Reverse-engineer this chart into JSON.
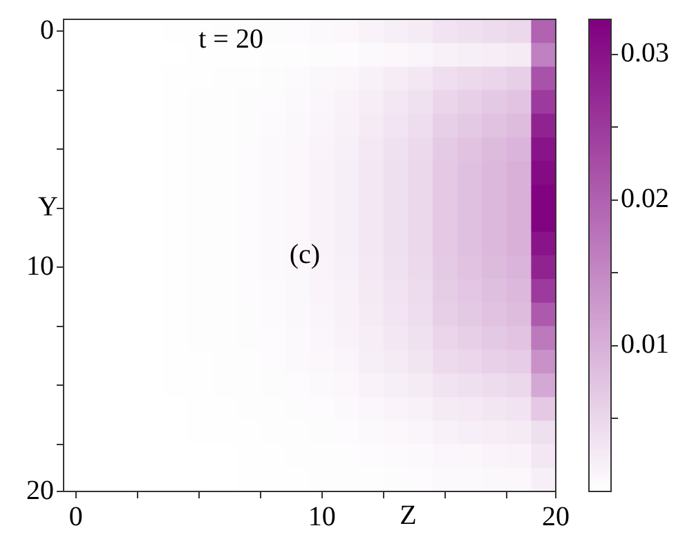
{
  "chart_data": {
    "type": "heatmap",
    "xlabel": "Z",
    "ylabel": "Y",
    "annotations": [
      "t = 20",
      "(c)"
    ],
    "x": [
      0,
      1,
      2,
      3,
      4,
      5,
      6,
      7,
      8,
      9,
      10,
      11,
      12,
      13,
      14,
      15,
      16,
      17,
      18,
      19
    ],
    "y": [
      0,
      1,
      2,
      3,
      4,
      5,
      6,
      7,
      8,
      9,
      10,
      11,
      12,
      13,
      14,
      15,
      16,
      17,
      18,
      19
    ],
    "xlim": [
      -0.5,
      19.5
    ],
    "ylim": [
      19.5,
      -0.5
    ],
    "xticks": [
      0,
      {
        "value": 2.5,
        "label": null
      },
      {
        "value": 5,
        "label": null
      },
      {
        "value": 7.5,
        "label": null
      },
      10,
      {
        "value": 12.5,
        "label": null
      },
      {
        "value": 15,
        "label": null
      },
      {
        "value": 17.5,
        "label": null
      },
      {
        "value": 19.5,
        "label": "20"
      }
    ],
    "yticks": [
      0,
      {
        "value": 2.5,
        "label": null
      },
      {
        "value": 5,
        "label": null
      },
      {
        "value": 7.5,
        "label": null
      },
      10,
      {
        "value": 12.5,
        "label": null
      },
      {
        "value": 15,
        "label": null
      },
      {
        "value": 17.5,
        "label": null
      },
      {
        "value": 19.5,
        "label": "20"
      }
    ],
    "clim": [
      0,
      0.0324
    ],
    "cticks": [
      {
        "value": 0.005,
        "label": null
      },
      0.01,
      {
        "value": 0.015,
        "label": null
      },
      0.02,
      {
        "value": 0.025,
        "label": null
      },
      0.03
    ],
    "color": "#800080",
    "cells": [
      [
        0,
        0,
        0,
        0,
        0.0001,
        0.0001,
        0.0002,
        0.0003,
        0.0004,
        0.0005,
        0.0008,
        0.001,
        0.0015,
        0.002,
        0.0025,
        0.0035,
        0.004,
        0.0045,
        0.005,
        0.02
      ],
      [
        0,
        0,
        0,
        0,
        0,
        0.0001,
        0.0001,
        0.0001,
        0.0002,
        0.0003,
        0.0004,
        0.0005,
        0.0008,
        0.001,
        0.0013,
        0.0018,
        0.002,
        0.0023,
        0.0025,
        0.016
      ],
      [
        0,
        0,
        0,
        0,
        0.0001,
        0.0001,
        0.0002,
        0.0003,
        0.0004,
        0.0006,
        0.0009,
        0.0012,
        0.0018,
        0.0024,
        0.003,
        0.0042,
        0.0048,
        0.0054,
        0.006,
        0.022
      ],
      [
        0,
        0,
        0,
        0,
        0.0001,
        0.0002,
        0.0002,
        0.0004,
        0.0005,
        0.0008,
        0.0011,
        0.0015,
        0.0023,
        0.003,
        0.0038,
        0.0053,
        0.006,
        0.0068,
        0.0075,
        0.025
      ],
      [
        0,
        0,
        0,
        0,
        0.0001,
        0.0002,
        0.0003,
        0.0004,
        0.0006,
        0.0009,
        0.0013,
        0.0017,
        0.0026,
        0.0034,
        0.0043,
        0.006,
        0.0068,
        0.0077,
        0.0085,
        0.028
      ],
      [
        0,
        0,
        0,
        0,
        0.0001,
        0.0002,
        0.0003,
        0.0005,
        0.0007,
        0.001,
        0.0014,
        0.0019,
        0.0029,
        0.0038,
        0.0048,
        0.0067,
        0.0076,
        0.0086,
        0.0095,
        0.03
      ],
      [
        0,
        0,
        0,
        0,
        0.0001,
        0.0002,
        0.0003,
        0.0005,
        0.0007,
        0.001,
        0.0015,
        0.002,
        0.003,
        0.004,
        0.005,
        0.007,
        0.008,
        0.009,
        0.01,
        0.031
      ],
      [
        0,
        0,
        0,
        0,
        0.0001,
        0.0002,
        0.0003,
        0.0005,
        0.0007,
        0.001,
        0.0015,
        0.002,
        0.003,
        0.004,
        0.005,
        0.007,
        0.008,
        0.009,
        0.01,
        0.032
      ],
      [
        0,
        0,
        0,
        0,
        0.0001,
        0.0002,
        0.0003,
        0.0005,
        0.0007,
        0.001,
        0.0015,
        0.002,
        0.003,
        0.004,
        0.005,
        0.007,
        0.008,
        0.009,
        0.01,
        0.032
      ],
      [
        0,
        0,
        0,
        0,
        0.0001,
        0.0002,
        0.0003,
        0.0005,
        0.0007,
        0.001,
        0.0015,
        0.002,
        0.003,
        0.004,
        0.005,
        0.007,
        0.008,
        0.009,
        0.01,
        0.03
      ],
      [
        0,
        0,
        0,
        0,
        0.0001,
        0.0002,
        0.0003,
        0.0005,
        0.0007,
        0.001,
        0.0014,
        0.0019,
        0.0029,
        0.0038,
        0.0048,
        0.0067,
        0.0076,
        0.0086,
        0.0095,
        0.028
      ],
      [
        0,
        0,
        0,
        0,
        0.0001,
        0.0002,
        0.0003,
        0.0005,
        0.0006,
        0.0009,
        0.0014,
        0.0018,
        0.0027,
        0.0036,
        0.0045,
        0.0063,
        0.0072,
        0.0081,
        0.009,
        0.025
      ],
      [
        0,
        0,
        0,
        0,
        0.0001,
        0.0002,
        0.0003,
        0.0004,
        0.0006,
        0.0009,
        0.0013,
        0.0017,
        0.0026,
        0.0034,
        0.0043,
        0.006,
        0.0068,
        0.0077,
        0.0085,
        0.021
      ],
      [
        0,
        0,
        0,
        0,
        0.0001,
        0.0002,
        0.0002,
        0.0004,
        0.0005,
        0.0008,
        0.0011,
        0.0015,
        0.0023,
        0.003,
        0.0038,
        0.0053,
        0.006,
        0.0068,
        0.0075,
        0.017
      ],
      [
        0,
        0,
        0,
        0,
        0.0001,
        0.0001,
        0.0002,
        0.0003,
        0.0005,
        0.0007,
        0.001,
        0.0013,
        0.002,
        0.0026,
        0.0033,
        0.0046,
        0.0052,
        0.0059,
        0.0065,
        0.014
      ],
      [
        0,
        0,
        0,
        0,
        0.0001,
        0.0001,
        0.0002,
        0.0003,
        0.0004,
        0.0005,
        0.0008,
        0.001,
        0.0015,
        0.002,
        0.0025,
        0.0035,
        0.004,
        0.0045,
        0.005,
        0.011
      ],
      [
        0,
        0,
        0,
        0,
        0,
        0.0001,
        0.0001,
        0.0002,
        0.0002,
        0.0004,
        0.0005,
        0.0007,
        0.0011,
        0.0014,
        0.0018,
        0.0025,
        0.0028,
        0.0032,
        0.0035,
        0.007
      ],
      [
        0,
        0,
        0,
        0,
        0,
        0.0001,
        0.0001,
        0.0001,
        0.0002,
        0.0003,
        0.0004,
        0.0005,
        0.0008,
        0.001,
        0.0013,
        0.0018,
        0.002,
        0.0023,
        0.0025,
        0.004
      ],
      [
        0,
        0,
        0,
        0,
        0,
        0,
        0,
        0.0001,
        0.0001,
        0.0002,
        0.0002,
        0.0003,
        0.0005,
        0.0006,
        0.0008,
        0.0011,
        0.0012,
        0.0014,
        0.0015,
        0.003
      ],
      [
        0,
        0,
        0,
        0,
        0,
        0,
        0,
        0.0001,
        0.0001,
        0.0001,
        0.0002,
        0.0002,
        0.0003,
        0.0004,
        0.0005,
        0.0007,
        0.0008,
        0.0009,
        0.001,
        0.002
      ]
    ]
  }
}
